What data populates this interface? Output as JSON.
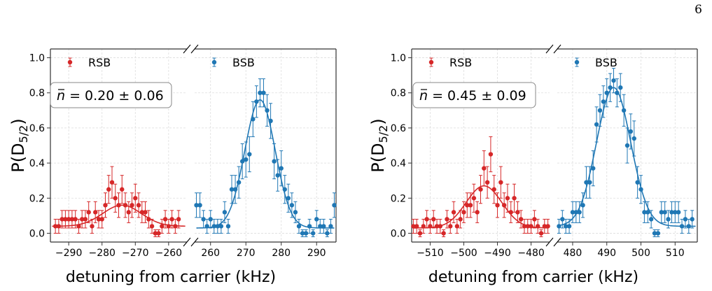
{
  "page": {
    "number": "6"
  },
  "colors": {
    "rsb": "#d62728",
    "bsb": "#1f77b4",
    "grid": "#dddddd",
    "axis": "#333333"
  },
  "chart_data": [
    {
      "type": "scatter",
      "ylabel_main": "P(D",
      "ylabel_sub": "5/2",
      "ylabel_close": ")",
      "xlabel": "detuning from carrier (kHz)",
      "ylim": [
        -0.05,
        1.05
      ],
      "yticks": [
        0.0,
        0.2,
        0.4,
        0.6,
        0.8,
        1.0
      ],
      "ytick_labels": [
        "0.0",
        "0.2",
        "0.4",
        "0.6",
        "0.8",
        "1.0"
      ],
      "grid": true,
      "annotation": {
        "prefix": "n",
        "text": " = 0.20 ± 0.06"
      },
      "panels": [
        {
          "name": "RSB",
          "xlim": [
            -295.5,
            -254.5
          ],
          "xticks": [
            -290,
            -280,
            -270,
            -260
          ],
          "xtick_labels": [
            "−290",
            "−280",
            "−270",
            "−260"
          ],
          "color": "#d62728",
          "legend": "RSB",
          "x": [
            -294,
            -293,
            -292,
            -291,
            -290,
            -289,
            -288,
            -287,
            -286,
            -285,
            -284,
            -283,
            -282,
            -281,
            -280,
            -279,
            -278,
            -277,
            -276,
            -275,
            -274,
            -273,
            -272,
            -271,
            -270,
            -269,
            -268,
            -267,
            -266,
            -265,
            -264,
            -263,
            -262,
            -261,
            -260,
            -259,
            -258,
            -257
          ],
          "y": [
            0.04,
            0.04,
            0.08,
            0.08,
            0.08,
            0.08,
            0.08,
            0.04,
            0.08,
            0.08,
            0.12,
            0.04,
            0.12,
            0.08,
            0.08,
            0.16,
            0.25,
            0.29,
            0.2,
            0.16,
            0.25,
            0.16,
            0.12,
            0.16,
            0.2,
            0.16,
            0.12,
            0.12,
            0.08,
            0.04,
            0.0,
            0.0,
            0.04,
            0.08,
            0.04,
            0.08,
            0.04,
            0.08
          ],
          "err": [
            0.04,
            0.04,
            0.05,
            0.05,
            0.05,
            0.05,
            0.05,
            0.04,
            0.05,
            0.05,
            0.06,
            0.04,
            0.06,
            0.05,
            0.05,
            0.07,
            0.08,
            0.09,
            0.08,
            0.07,
            0.08,
            0.07,
            0.06,
            0.07,
            0.08,
            0.07,
            0.06,
            0.06,
            0.05,
            0.04,
            0.02,
            0.02,
            0.04,
            0.05,
            0.04,
            0.05,
            0.04,
            0.05
          ],
          "fit": {
            "offset": 0.04,
            "amp": 0.12,
            "center": -274,
            "sigma": 5.8
          }
        },
        {
          "name": "BSB",
          "xlim": [
            255.5,
            295.5
          ],
          "xticks": [
            260,
            270,
            280,
            290
          ],
          "xtick_labels": [
            "260",
            "270",
            "280",
            "290"
          ],
          "color": "#1f77b4",
          "legend": "BSB",
          "x": [
            256,
            257,
            258,
            259,
            260,
            261,
            262,
            263,
            264,
            265,
            266,
            267,
            268,
            269,
            270,
            271,
            272,
            273,
            274,
            275,
            276,
            277,
            278,
            279,
            280,
            281,
            282,
            283,
            284,
            285,
            286,
            287,
            288,
            289,
            290,
            291,
            292,
            293,
            294,
            295
          ],
          "y": [
            0.16,
            0.16,
            0.08,
            0.04,
            0.08,
            0.04,
            0.04,
            0.04,
            0.12,
            0.04,
            0.25,
            0.25,
            0.29,
            0.41,
            0.42,
            0.45,
            0.65,
            0.75,
            0.8,
            0.8,
            0.7,
            0.64,
            0.41,
            0.33,
            0.37,
            0.25,
            0.2,
            0.16,
            0.12,
            0.04,
            0.0,
            0.0,
            0.04,
            0.0,
            0.08,
            0.04,
            0.04,
            0.0,
            0.04,
            0.16
          ],
          "err": [
            0.07,
            0.07,
            0.05,
            0.04,
            0.05,
            0.04,
            0.04,
            0.04,
            0.06,
            0.04,
            0.08,
            0.08,
            0.09,
            0.1,
            0.1,
            0.1,
            0.1,
            0.09,
            0.08,
            0.08,
            0.09,
            0.1,
            0.1,
            0.09,
            0.1,
            0.08,
            0.08,
            0.07,
            0.06,
            0.04,
            0.02,
            0.02,
            0.04,
            0.02,
            0.05,
            0.04,
            0.04,
            0.02,
            0.04,
            0.07
          ],
          "fit": {
            "offset": 0.03,
            "amp": 0.73,
            "center": 274,
            "sigma": 4.3
          }
        }
      ]
    },
    {
      "type": "scatter",
      "ylabel_main": "P(D",
      "ylabel_sub": "5/2",
      "ylabel_close": ")",
      "xlabel": "detuning from carrier (kHz)",
      "ylim": [
        -0.05,
        1.05
      ],
      "yticks": [
        0.0,
        0.2,
        0.4,
        0.6,
        0.8,
        1.0
      ],
      "ytick_labels": [
        "0.0",
        "0.2",
        "0.4",
        "0.6",
        "0.8",
        "1.0"
      ],
      "grid": true,
      "annotation": {
        "prefix": "n",
        "text": " = 0.45 ± 0.09"
      },
      "panels": [
        {
          "name": "RSB",
          "xlim": [
            -515.5,
            -474.5
          ],
          "xticks": [
            -510,
            -500,
            -490,
            -480
          ],
          "xtick_labels": [
            "−510",
            "−500",
            "−490",
            "−480"
          ],
          "color": "#d62728",
          "legend": "RSB",
          "x": [
            -515,
            -514,
            -513,
            -512,
            -511,
            -510,
            -509,
            -508,
            -507,
            -506,
            -505,
            -504,
            -503,
            -502,
            -501,
            -500,
            -499,
            -498,
            -497,
            -496,
            -495,
            -494,
            -493,
            -492,
            -491,
            -490,
            -489,
            -488,
            -487,
            -486,
            -485,
            -484,
            -483,
            -482,
            -481,
            -480,
            -479,
            -478,
            -477,
            -476,
            -475
          ],
          "y": [
            0.04,
            0.04,
            0.0,
            0.04,
            0.08,
            0.04,
            0.08,
            0.04,
            0.04,
            0.0,
            0.08,
            0.04,
            0.12,
            0.04,
            0.08,
            0.12,
            0.16,
            0.16,
            0.2,
            0.12,
            0.25,
            0.37,
            0.29,
            0.45,
            0.25,
            0.16,
            0.29,
            0.16,
            0.2,
            0.12,
            0.2,
            0.12,
            0.08,
            0.04,
            0.04,
            0.04,
            0.08,
            0.04,
            0.0,
            0.04,
            0.04
          ],
          "err": [
            0.04,
            0.04,
            0.02,
            0.04,
            0.05,
            0.04,
            0.05,
            0.04,
            0.04,
            0.02,
            0.05,
            0.04,
            0.06,
            0.04,
            0.05,
            0.06,
            0.07,
            0.07,
            0.08,
            0.06,
            0.08,
            0.1,
            0.09,
            0.1,
            0.08,
            0.07,
            0.09,
            0.07,
            0.08,
            0.06,
            0.08,
            0.06,
            0.05,
            0.04,
            0.04,
            0.04,
            0.05,
            0.04,
            0.02,
            0.04,
            0.04
          ],
          "fit": {
            "offset": 0.03,
            "amp": 0.24,
            "center": -494,
            "sigma": 5.3
          }
        },
        {
          "name": "BSB",
          "xlim": [
            475.5,
            516.5
          ],
          "xticks": [
            480,
            490,
            500,
            510
          ],
          "xtick_labels": [
            "480",
            "490",
            "500",
            "510"
          ],
          "color": "#1f77b4",
          "legend": "BSB",
          "x": [
            476,
            477,
            478,
            479,
            480,
            481,
            482,
            483,
            484,
            485,
            486,
            487,
            488,
            489,
            490,
            491,
            492,
            493,
            494,
            495,
            496,
            497,
            498,
            499,
            500,
            501,
            502,
            503,
            504,
            505,
            506,
            507,
            508,
            509,
            510,
            511,
            512,
            513,
            514,
            515
          ],
          "y": [
            0.04,
            0.08,
            0.04,
            0.04,
            0.12,
            0.12,
            0.12,
            0.16,
            0.29,
            0.29,
            0.37,
            0.62,
            0.7,
            0.75,
            0.8,
            0.83,
            0.87,
            0.8,
            0.83,
            0.7,
            0.5,
            0.58,
            0.54,
            0.29,
            0.25,
            0.12,
            0.12,
            0.08,
            0.0,
            0.0,
            0.12,
            0.12,
            0.08,
            0.12,
            0.12,
            0.12,
            0.04,
            0.08,
            0.04,
            0.08
          ],
          "err": [
            0.04,
            0.05,
            0.04,
            0.04,
            0.06,
            0.06,
            0.06,
            0.07,
            0.09,
            0.09,
            0.1,
            0.1,
            0.09,
            0.09,
            0.08,
            0.08,
            0.07,
            0.08,
            0.08,
            0.09,
            0.1,
            0.1,
            0.1,
            0.09,
            0.08,
            0.06,
            0.06,
            0.05,
            0.02,
            0.02,
            0.06,
            0.06,
            0.05,
            0.06,
            0.06,
            0.06,
            0.04,
            0.05,
            0.04,
            0.05
          ],
          "fit": {
            "offset": 0.04,
            "amp": 0.79,
            "center": 492,
            "sigma": 5.0
          }
        }
      ]
    }
  ]
}
